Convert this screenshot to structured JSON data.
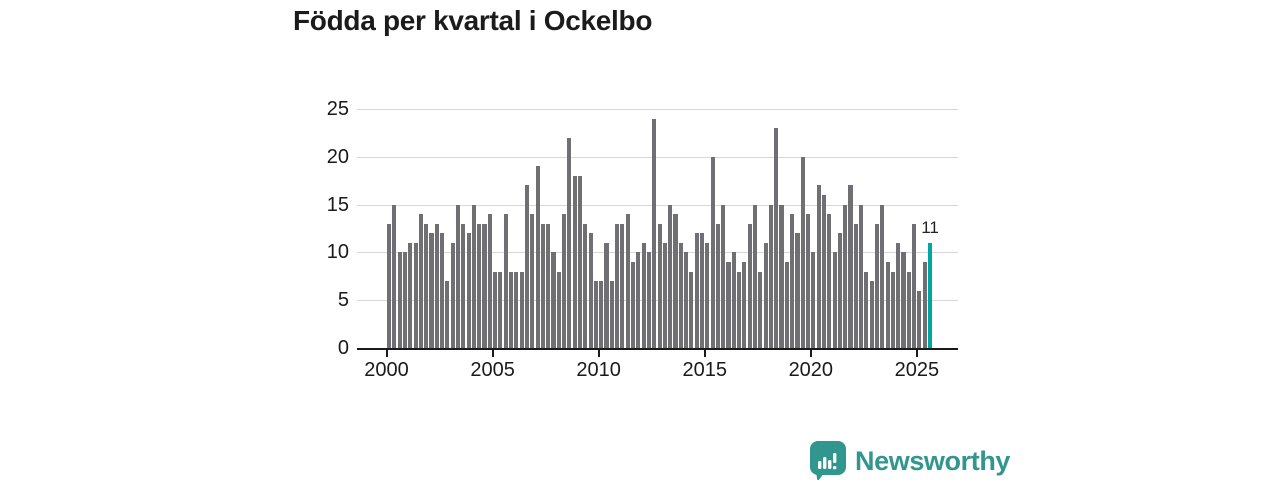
{
  "title": "Födda per kvartal i Ockelbo",
  "chart_data": {
    "type": "bar",
    "title": "Födda per kvartal i Ockelbo",
    "x_unit": "quarter",
    "x_start": "2000-Q1",
    "x_end": "2025-Q3",
    "x_tick_years": [
      2000,
      2005,
      2010,
      2015,
      2020,
      2025
    ],
    "x_tick_labels": [
      "2000",
      "2005",
      "2010",
      "2015",
      "2020",
      "2025"
    ],
    "y_ticks": [
      0,
      5,
      10,
      15,
      20,
      25
    ],
    "ylim": [
      0,
      25
    ],
    "grid": "horizontal",
    "legend": "none",
    "values": [
      13,
      15,
      10,
      10,
      11,
      11,
      14,
      13,
      12,
      13,
      12,
      7,
      11,
      15,
      13,
      12,
      15,
      13,
      13,
      14,
      8,
      8,
      14,
      8,
      8,
      8,
      17,
      14,
      19,
      13,
      13,
      10,
      8,
      14,
      22,
      18,
      18,
      13,
      12,
      7,
      7,
      11,
      7,
      13,
      13,
      14,
      9,
      10,
      11,
      10,
      24,
      13,
      11,
      15,
      14,
      11,
      10,
      8,
      12,
      12,
      11,
      20,
      13,
      15,
      9,
      10,
      8,
      9,
      13,
      15,
      8,
      11,
      15,
      23,
      15,
      9,
      14,
      12,
      20,
      14,
      10,
      17,
      16,
      14,
      10,
      12,
      15,
      17,
      13,
      15,
      8,
      7,
      13,
      15,
      9,
      8,
      11,
      10,
      8,
      13,
      6,
      9,
      11
    ],
    "highlight": {
      "position": "last",
      "value": 11,
      "label": "11"
    }
  },
  "colors": {
    "bar": "#707074",
    "accent": "#00a69f",
    "grid": "#d8d8d8",
    "axis": "#1a1a1a",
    "logo": "#31968d"
  },
  "footer": {
    "logo_text": "Newsworthy"
  }
}
